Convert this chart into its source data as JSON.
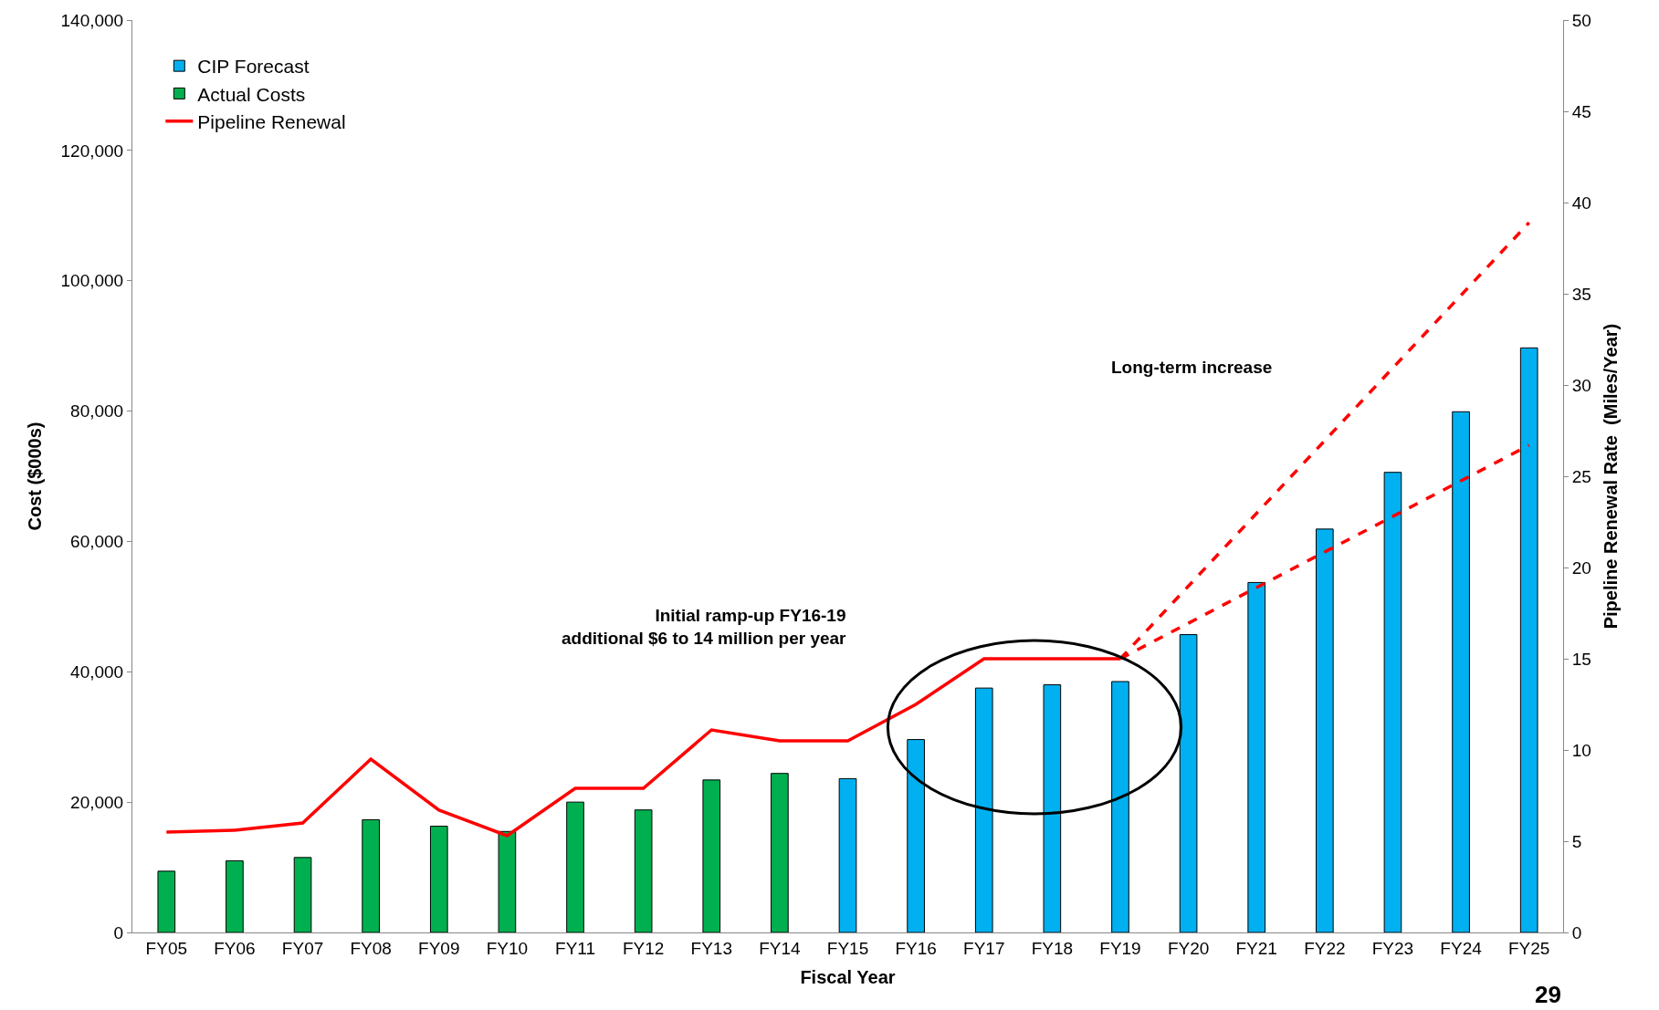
{
  "chart_data": {
    "type": "bar",
    "categories": [
      "FY05",
      "FY06",
      "FY07",
      "FY08",
      "FY09",
      "FY10",
      "FY11",
      "FY12",
      "FY13",
      "FY14",
      "FY15",
      "FY16",
      "FY17",
      "FY18",
      "FY19",
      "FY20",
      "FY21",
      "FY22",
      "FY23",
      "FY24",
      "FY25"
    ],
    "series": [
      {
        "name": "CIP Forecast",
        "color": "#00b0f0",
        "values": [
          null,
          null,
          null,
          null,
          null,
          null,
          null,
          null,
          null,
          null,
          23600,
          29600,
          37500,
          38000,
          38500,
          45700,
          53700,
          61900,
          70600,
          79900,
          89700
        ]
      },
      {
        "name": "Actual Costs",
        "color": "#00b050",
        "values": [
          9400,
          11000,
          11500,
          17300,
          16300,
          15500,
          20000,
          18800,
          23400,
          24400,
          null,
          null,
          null,
          null,
          null,
          null,
          null,
          null,
          null,
          null,
          null
        ]
      },
      {
        "name": "Pipeline Renewal",
        "type": "line",
        "axis": "y2",
        "color": "#ff0000",
        "values": [
          5.5,
          5.6,
          6.0,
          9.5,
          6.7,
          5.3,
          7.9,
          7.9,
          11.1,
          10.5,
          10.5,
          12.5,
          15,
          15,
          15,
          null,
          null,
          null,
          null,
          null,
          null
        ]
      },
      {
        "type": "line",
        "axis": "y2",
        "color": "#ff0000",
        "line_style": "dashed",
        "values": [
          null,
          null,
          null,
          null,
          null,
          null,
          null,
          null,
          null,
          null,
          null,
          null,
          null,
          null,
          15,
          null,
          null,
          null,
          null,
          null,
          38.9
        ]
      },
      {
        "type": "line",
        "axis": "y2",
        "color": "#ff0000",
        "line_style": "dashed",
        "values": [
          null,
          null,
          null,
          null,
          null,
          null,
          null,
          null,
          null,
          null,
          null,
          null,
          null,
          null,
          15,
          null,
          null,
          null,
          null,
          null,
          26.7
        ]
      }
    ],
    "xlabel": "Fiscal Year",
    "ylabel": "Cost ($000s)",
    "y2label": "Pipeline Renewal Rate  (Miles/Year)",
    "ylim": [
      0,
      140000
    ],
    "yticks": [
      {
        "value": 0,
        "label": "0"
      },
      {
        "value": 20000,
        "label": "20,000"
      },
      {
        "value": 40000,
        "label": "40,000"
      },
      {
        "value": 60000,
        "label": "60,000"
      },
      {
        "value": 80000,
        "label": "80,000"
      },
      {
        "value": 100000,
        "label": "100,000"
      },
      {
        "value": 120000,
        "label": "120,000"
      },
      {
        "value": 140000,
        "label": "140,000"
      }
    ],
    "y2lim": [
      0,
      50
    ],
    "y2ticks": [
      0,
      5,
      10,
      15,
      20,
      25,
      30,
      35,
      40,
      45,
      50
    ],
    "annotations": [
      "Long-term increase",
      "Initial ramp-up FY16-19\nadditional $6 to 14 million per year",
      "29"
    ],
    "legend": "top left"
  }
}
